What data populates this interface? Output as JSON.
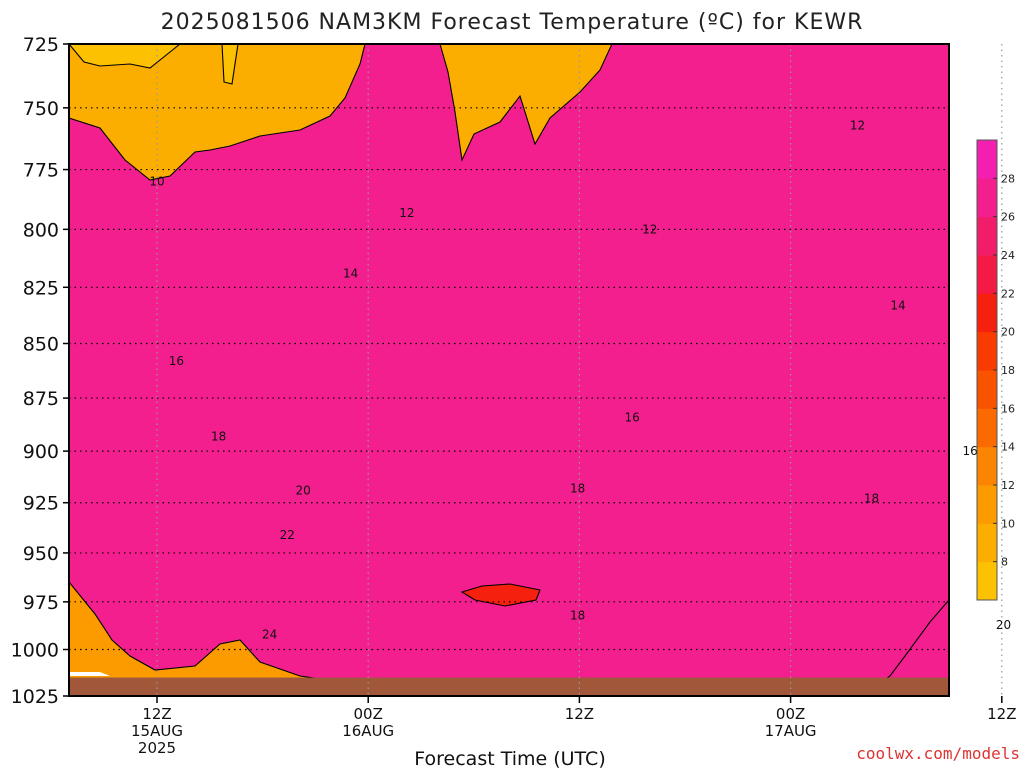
{
  "title": "2025081506 NAM3KM Forecast Temperature (ºC) for KEWR",
  "x_axis_title": "Forecast Time (UTC)",
  "credit": "coolwx.com/models",
  "chart_data": {
    "type": "heatmap",
    "variant": "time-height contour cross-section",
    "title": "2025081506 NAM3KM Forecast Temperature (ºC) for KEWR",
    "xlabel": "Forecast Time (UTC)",
    "ylabel": "",
    "y_axis": {
      "scale": "log",
      "inverted": true,
      "range": [
        1025,
        725
      ],
      "ticks": [
        725,
        750,
        775,
        800,
        825,
        850,
        875,
        900,
        925,
        950,
        975,
        1000,
        1025
      ]
    },
    "x_axis": {
      "range_hours_after_init": [
        1,
        51
      ],
      "ticks": [
        {
          "hour": 6,
          "lines": [
            "12Z",
            "15AUG",
            "2025"
          ]
        },
        {
          "hour": 18,
          "lines": [
            "00Z",
            "16AUG"
          ]
        },
        {
          "hour": 30,
          "lines": [
            "12Z"
          ]
        },
        {
          "hour": 42,
          "lines": [
            "00Z",
            "17AUG"
          ]
        },
        {
          "hour": 54,
          "lines": [
            "12Z"
          ]
        }
      ]
    },
    "grid": true,
    "colorbar": {
      "position": "right",
      "levels": [
        6,
        8,
        10,
        12,
        14,
        16,
        18,
        20,
        22,
        24,
        26,
        28,
        30
      ],
      "colors": [
        "#fcc100",
        "#fcae00",
        "#fb9b00",
        "#fb8400",
        "#fa6a00",
        "#f95300",
        "#f83b00",
        "#f6200e",
        "#f41a45",
        "#f21d6a",
        "#f31f8e",
        "#f41fb1"
      ],
      "tick_labels": [
        "8",
        "10",
        "12",
        "14",
        "16",
        "18",
        "20",
        "22",
        "24",
        "26",
        "28"
      ]
    },
    "contour_labels": [
      {
        "text": "10",
        "hour": 6.0,
        "p": 780
      },
      {
        "text": "12",
        "hour": 20.2,
        "p": 793
      },
      {
        "text": "12",
        "hour": 34.0,
        "p": 800
      },
      {
        "text": "12",
        "hour": 45.8,
        "p": 757
      },
      {
        "text": "14",
        "hour": 17.0,
        "p": 819
      },
      {
        "text": "14",
        "hour": 48.1,
        "p": 833
      },
      {
        "text": "14",
        "hour": 55.8,
        "p": 788
      },
      {
        "text": "16",
        "hour": 7.1,
        "p": 858
      },
      {
        "text": "16",
        "hour": 33.0,
        "p": 884
      },
      {
        "text": "16",
        "hour": 52.2,
        "p": 900
      },
      {
        "text": "18",
        "hour": 9.5,
        "p": 893
      },
      {
        "text": "18",
        "hour": 29.9,
        "p": 918
      },
      {
        "text": "18",
        "hour": 29.9,
        "p": 982
      },
      {
        "text": "18",
        "hour": 46.6,
        "p": 923
      },
      {
        "text": "20",
        "hour": 14.3,
        "p": 919
      },
      {
        "text": "20",
        "hour": 54.1,
        "p": 987
      },
      {
        "text": "22",
        "hour": 13.4,
        "p": 941
      },
      {
        "text": "24",
        "hour": 12.4,
        "p": 992
      }
    ],
    "ground": {
      "color": "#a0573a",
      "below_p": 1015
    }
  }
}
